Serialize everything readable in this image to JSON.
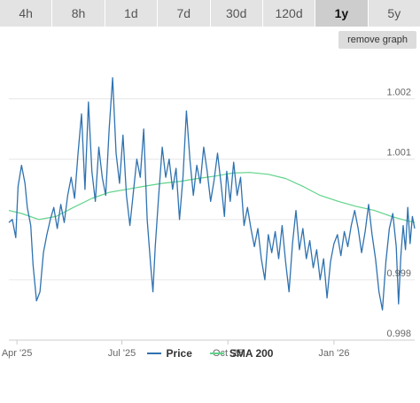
{
  "tabs": [
    {
      "label": "4h",
      "active": false
    },
    {
      "label": "8h",
      "active": false
    },
    {
      "label": "1d",
      "active": false
    },
    {
      "label": "7d",
      "active": false
    },
    {
      "label": "30d",
      "active": false
    },
    {
      "label": "120d",
      "active": false
    },
    {
      "label": "1y",
      "active": true
    },
    {
      "label": "5y",
      "active": false
    }
  ],
  "remove_graph_label": "remove graph",
  "colors": {
    "price": "#2f72b0",
    "sma": "#5fd38a",
    "grid": "#e6e6e6"
  },
  "chart_data": {
    "type": "line",
    "title": "",
    "xlabel": "",
    "ylabel": "",
    "ylim": [
      0.998,
      1.0027
    ],
    "xlim": [
      "2025-03-25",
      "2026-03-12"
    ],
    "yticks": [
      {
        "value": 0.998,
        "label": "0.998"
      },
      {
        "value": 0.999,
        "label": "0.999"
      },
      {
        "value": 1.0,
        "label": ""
      },
      {
        "value": 1.001,
        "label": "1.001"
      },
      {
        "value": 1.002,
        "label": "1.002"
      }
    ],
    "xticks": [
      {
        "date": "2025-04-01",
        "label": "Apr '25"
      },
      {
        "date": "2025-07-01",
        "label": "Jul '25"
      },
      {
        "date": "2025-10-01",
        "label": "Oct '25"
      },
      {
        "date": "2026-01-01",
        "label": "Jan '26"
      }
    ],
    "legend_position": "bottom-center",
    "grid": true,
    "series": [
      {
        "name": "Price",
        "color": "#2f72b0",
        "points": [
          [
            "2025-03-25",
            0.99995
          ],
          [
            "2025-03-28",
            1.0
          ],
          [
            "2025-03-31",
            0.9997
          ],
          [
            "2025-04-02",
            1.00055
          ],
          [
            "2025-04-05",
            1.0009
          ],
          [
            "2025-04-08",
            1.0006
          ],
          [
            "2025-04-10",
            1.0002
          ],
          [
            "2025-04-13",
            0.9999
          ],
          [
            "2025-04-15",
            0.99925
          ],
          [
            "2025-04-18",
            0.99865
          ],
          [
            "2025-04-21",
            0.9988
          ],
          [
            "2025-04-24",
            0.99945
          ],
          [
            "2025-04-27",
            0.99975
          ],
          [
            "2025-04-30",
            1.0
          ],
          [
            "2025-05-03",
            1.0002
          ],
          [
            "2025-05-06",
            0.99985
          ],
          [
            "2025-05-09",
            1.00025
          ],
          [
            "2025-05-12",
            0.99995
          ],
          [
            "2025-05-15",
            1.0004
          ],
          [
            "2025-05-18",
            1.0007
          ],
          [
            "2025-05-21",
            1.00035
          ],
          [
            "2025-05-24",
            1.0011
          ],
          [
            "2025-05-27",
            1.00175
          ],
          [
            "2025-05-30",
            1.0005
          ],
          [
            "2025-06-02",
            1.00195
          ],
          [
            "2025-06-05",
            1.0008
          ],
          [
            "2025-06-08",
            1.0003
          ],
          [
            "2025-06-11",
            1.0012
          ],
          [
            "2025-06-14",
            1.0007
          ],
          [
            "2025-06-17",
            1.0004
          ],
          [
            "2025-06-20",
            1.0015
          ],
          [
            "2025-06-23",
            1.00235
          ],
          [
            "2025-06-26",
            1.0011
          ],
          [
            "2025-06-29",
            1.0006
          ],
          [
            "2025-07-02",
            1.0014
          ],
          [
            "2025-07-05",
            1.0004
          ],
          [
            "2025-07-08",
            0.9999
          ],
          [
            "2025-07-11",
            1.00045
          ],
          [
            "2025-07-14",
            1.001
          ],
          [
            "2025-07-17",
            1.0007
          ],
          [
            "2025-07-20",
            1.0015
          ],
          [
            "2025-07-23",
            1.0
          ],
          [
            "2025-07-26",
            0.99925
          ],
          [
            "2025-07-28",
            0.9988
          ],
          [
            "2025-07-30",
            0.99955
          ],
          [
            "2025-08-02",
            1.0004
          ],
          [
            "2025-08-05",
            1.0012
          ],
          [
            "2025-08-08",
            1.0007
          ],
          [
            "2025-08-11",
            1.001
          ],
          [
            "2025-08-14",
            1.0005
          ],
          [
            "2025-08-17",
            1.00085
          ],
          [
            "2025-08-20",
            1.0
          ],
          [
            "2025-08-23",
            1.0007
          ],
          [
            "2025-08-26",
            1.0018
          ],
          [
            "2025-08-29",
            1.001
          ],
          [
            "2025-09-01",
            1.0004
          ],
          [
            "2025-09-04",
            1.0009
          ],
          [
            "2025-09-07",
            1.0006
          ],
          [
            "2025-09-10",
            1.0012
          ],
          [
            "2025-09-13",
            1.0008
          ],
          [
            "2025-09-16",
            1.0003
          ],
          [
            "2025-09-19",
            1.00065
          ],
          [
            "2025-09-22",
            1.0011
          ],
          [
            "2025-09-25",
            1.0006
          ],
          [
            "2025-09-28",
            1.00005
          ],
          [
            "2025-09-30",
            1.0008
          ],
          [
            "2025-10-03",
            1.0003
          ],
          [
            "2025-10-06",
            1.00095
          ],
          [
            "2025-10-09",
            1.0004
          ],
          [
            "2025-10-12",
            1.0007
          ],
          [
            "2025-10-15",
            0.9999
          ],
          [
            "2025-10-18",
            1.0002
          ],
          [
            "2025-10-21",
            0.99985
          ],
          [
            "2025-10-24",
            0.99955
          ],
          [
            "2025-10-27",
            0.99985
          ],
          [
            "2025-10-30",
            0.99935
          ],
          [
            "2025-11-02",
            0.999
          ],
          [
            "2025-11-05",
            0.99975
          ],
          [
            "2025-11-08",
            0.99945
          ],
          [
            "2025-11-11",
            0.9998
          ],
          [
            "2025-11-14",
            0.99935
          ],
          [
            "2025-11-17",
            0.9999
          ],
          [
            "2025-11-20",
            0.9993
          ],
          [
            "2025-11-23",
            0.9988
          ],
          [
            "2025-11-26",
            0.9996
          ],
          [
            "2025-11-29",
            1.00015
          ],
          [
            "2025-12-02",
            0.9995
          ],
          [
            "2025-12-05",
            0.99985
          ],
          [
            "2025-12-08",
            0.99935
          ],
          [
            "2025-12-11",
            0.99965
          ],
          [
            "2025-12-14",
            0.9992
          ],
          [
            "2025-12-17",
            0.9995
          ],
          [
            "2025-12-20",
            0.999
          ],
          [
            "2025-12-23",
            0.99935
          ],
          [
            "2025-12-26",
            0.9987
          ],
          [
            "2025-12-29",
            0.9993
          ],
          [
            "2026-01-01",
            0.9996
          ],
          [
            "2026-01-04",
            0.99975
          ],
          [
            "2026-01-07",
            0.9994
          ],
          [
            "2026-01-10",
            0.9998
          ],
          [
            "2026-01-13",
            0.99955
          ],
          [
            "2026-01-16",
            0.9999
          ],
          [
            "2026-01-19",
            1.00015
          ],
          [
            "2026-01-22",
            0.99985
          ],
          [
            "2026-01-25",
            0.99945
          ],
          [
            "2026-01-28",
            0.9998
          ],
          [
            "2026-01-31",
            1.00025
          ],
          [
            "2026-02-03",
            0.99975
          ],
          [
            "2026-02-06",
            0.99935
          ],
          [
            "2026-02-09",
            0.9988
          ],
          [
            "2026-02-12",
            0.9985
          ],
          [
            "2026-02-15",
            0.9993
          ],
          [
            "2026-02-18",
            0.99985
          ],
          [
            "2026-02-21",
            1.0001
          ],
          [
            "2026-02-24",
            0.99955
          ],
          [
            "2026-02-26",
            0.9986
          ],
          [
            "2026-02-28",
            0.9994
          ],
          [
            "2026-03-02",
            0.9999
          ],
          [
            "2026-03-04",
            0.9995
          ],
          [
            "2026-03-06",
            1.0002
          ],
          [
            "2026-03-08",
            0.9996
          ],
          [
            "2026-03-10",
            1.00005
          ],
          [
            "2026-03-12",
            0.99985
          ]
        ]
      },
      {
        "name": "SMA 200",
        "color": "#5fd38a",
        "points": [
          [
            "2025-03-25",
            1.00015
          ],
          [
            "2025-04-05",
            1.0001
          ],
          [
            "2025-04-20",
            1.0
          ],
          [
            "2025-05-05",
            1.00005
          ],
          [
            "2025-05-20",
            1.0002
          ],
          [
            "2025-06-05",
            1.00035
          ],
          [
            "2025-06-20",
            1.00045
          ],
          [
            "2025-07-05",
            1.0005
          ],
          [
            "2025-07-20",
            1.00055
          ],
          [
            "2025-08-05",
            1.0006
          ],
          [
            "2025-08-20",
            1.00063
          ],
          [
            "2025-09-05",
            1.00068
          ],
          [
            "2025-09-20",
            1.00072
          ],
          [
            "2025-10-05",
            1.00077
          ],
          [
            "2025-10-20",
            1.00078
          ],
          [
            "2025-11-05",
            1.00075
          ],
          [
            "2025-11-20",
            1.00068
          ],
          [
            "2025-12-05",
            1.00055
          ],
          [
            "2025-12-20",
            1.0004
          ],
          [
            "2026-01-05",
            1.0003
          ],
          [
            "2026-01-20",
            1.00022
          ],
          [
            "2026-02-05",
            1.00015
          ],
          [
            "2026-02-20",
            1.00005
          ],
          [
            "2026-03-05",
            0.99998
          ],
          [
            "2026-03-12",
            0.99995
          ]
        ]
      }
    ]
  },
  "legend": [
    {
      "label": "Price"
    },
    {
      "label": "SMA 200"
    }
  ]
}
